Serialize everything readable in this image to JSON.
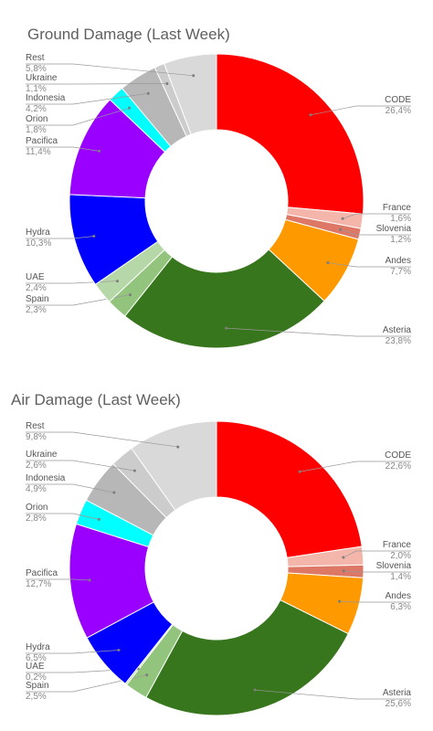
{
  "chart_data": [
    {
      "type": "pie",
      "title": "Ground Damage (Last Week)",
      "slices": [
        {
          "name": "CODE",
          "value": 26.4,
          "label": "26,4%",
          "color": "#ff0000"
        },
        {
          "name": "France",
          "value": 1.6,
          "label": "1,6%",
          "color": "#f4b6aa"
        },
        {
          "name": "Slovenia",
          "value": 1.2,
          "label": "1,2%",
          "color": "#dd7766"
        },
        {
          "name": "Andes",
          "value": 7.7,
          "label": "7,7%",
          "color": "#ff9900"
        },
        {
          "name": "Asteria",
          "value": 23.8,
          "label": "23,8%",
          "color": "#38761d"
        },
        {
          "name": "Spain",
          "value": 2.3,
          "label": "2,3%",
          "color": "#93c47d"
        },
        {
          "name": "UAE",
          "value": 2.4,
          "label": "2,4%",
          "color": "#b6d7a8"
        },
        {
          "name": "Hydra",
          "value": 10.3,
          "label": "10,3%",
          "color": "#0000ff"
        },
        {
          "name": "Pacifica",
          "value": 11.4,
          "label": "11,4%",
          "color": "#9900ff"
        },
        {
          "name": "Orion",
          "value": 1.8,
          "label": "1,8%",
          "color": "#00ffff"
        },
        {
          "name": "Indonesia",
          "value": 4.2,
          "label": "4,2%",
          "color": "#b7b7b7"
        },
        {
          "name": "Ukraine",
          "value": 1.1,
          "label": "1,1%",
          "color": "#cccccc"
        },
        {
          "name": "Rest",
          "value": 5.8,
          "label": "5,8%",
          "color": "#d9d9d9"
        }
      ]
    },
    {
      "type": "pie",
      "title": "Air Damage (Last Week)",
      "slices": [
        {
          "name": "CODE",
          "value": 22.6,
          "label": "22,6%",
          "color": "#ff0000"
        },
        {
          "name": "France",
          "value": 2.0,
          "label": "2,0%",
          "color": "#f4b6aa"
        },
        {
          "name": "Slovenia",
          "value": 1.4,
          "label": "1,4%",
          "color": "#dd7766"
        },
        {
          "name": "Andes",
          "value": 6.3,
          "label": "6,3%",
          "color": "#ff9900"
        },
        {
          "name": "Asteria",
          "value": 25.6,
          "label": "25,6%",
          "color": "#38761d"
        },
        {
          "name": "Spain",
          "value": 2.5,
          "label": "2,5%",
          "color": "#93c47d"
        },
        {
          "name": "UAE",
          "value": 0.2,
          "label": "0,2%",
          "color": "#b6d7a8"
        },
        {
          "name": "Hydra",
          "value": 6.5,
          "label": "6,5%",
          "color": "#0000ff"
        },
        {
          "name": "Pacifica",
          "value": 12.7,
          "label": "12,7%",
          "color": "#9900ff"
        },
        {
          "name": "Orion",
          "value": 2.8,
          "label": "2,8%",
          "color": "#00ffff"
        },
        {
          "name": "Indonesia",
          "value": 4.9,
          "label": "4,9%",
          "color": "#b7b7b7"
        },
        {
          "name": "Ukraine",
          "value": 2.6,
          "label": "2,6%",
          "color": "#cccccc"
        },
        {
          "name": "Rest",
          "value": 9.8,
          "label": "9,8%",
          "color": "#d9d9d9"
        }
      ]
    }
  ]
}
